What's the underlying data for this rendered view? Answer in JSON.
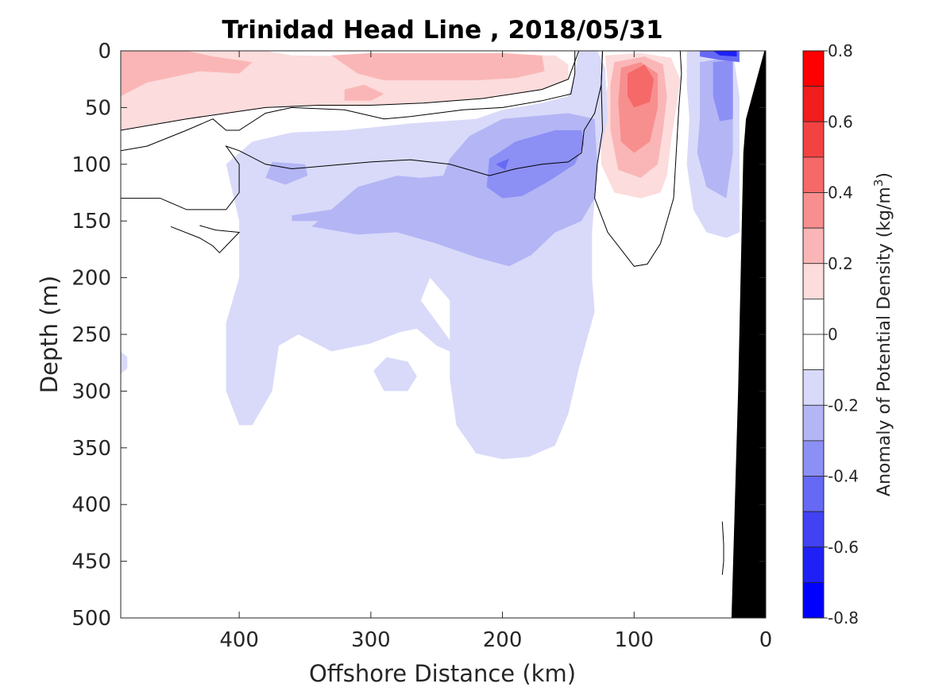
{
  "chart_data": {
    "type": "heatmap",
    "title": "Trinidad Head Line , 2018/05/31",
    "xlabel": "Offshore Distance (km)",
    "ylabel": "Depth (m)",
    "xlim": [
      490,
      0
    ],
    "ylim": [
      0,
      500
    ],
    "x_ticks": [
      "400",
      "300",
      "200",
      "100",
      "0"
    ],
    "y_ticks": [
      "0",
      "50",
      "100",
      "150",
      "200",
      "250",
      "300",
      "350",
      "400",
      "450",
      "500"
    ],
    "colorbar": {
      "label_main": "Anomaly of Potential Density (kg/m",
      "label_sup": "3",
      "label_end": ")",
      "range": [
        -0.8,
        0.8
      ],
      "step": 0.1,
      "tick_labels": [
        "0.8",
        "0.6",
        "0.4",
        "0.2",
        "0",
        "-0.2",
        "-0.4",
        "-0.6",
        "-0.8"
      ],
      "colors": {
        "neg_0.1": "#d9daf9",
        "neg_0.2": "#b3b5f5",
        "neg_0.3": "#8c8ff4",
        "neg_0.4": "#6669f4",
        "neg_0.5": "#4042f4",
        "neg_0.6": "#1f20f6",
        "neg_0.7": "#0000ff",
        "zero": "#ffffff",
        "pos_0.1": "#fcdcdc",
        "pos_0.2": "#fab6b6",
        "pos_0.3": "#f88f8f",
        "pos_0.4": "#f56969",
        "pos_0.5": "#f34242",
        "pos_0.6": "#f21d1d",
        "pos_0.7": "#ff0000"
      }
    },
    "regions": [
      {
        "level": 0.1,
        "points": [
          [
            490,
            0
          ],
          [
            380,
            0
          ],
          [
            360,
            4
          ],
          [
            300,
            5
          ],
          [
            210,
            4
          ],
          [
            160,
            4
          ],
          [
            150,
            12
          ],
          [
            150,
            25
          ],
          [
            170,
            34
          ],
          [
            215,
            42
          ],
          [
            260,
            46
          ],
          [
            300,
            48
          ],
          [
            340,
            48
          ],
          [
            380,
            50
          ],
          [
            440,
            60
          ],
          [
            490,
            70
          ]
        ]
      },
      {
        "level": 0.2,
        "points": [
          [
            490,
            0
          ],
          [
            440,
            0
          ],
          [
            420,
            5
          ],
          [
            390,
            10
          ],
          [
            400,
            20
          ],
          [
            430,
            18
          ],
          [
            470,
            28
          ],
          [
            490,
            40
          ]
        ]
      },
      {
        "level": 0.2,
        "points": [
          [
            330,
            4
          ],
          [
            300,
            2
          ],
          [
            250,
            2
          ],
          [
            200,
            2
          ],
          [
            170,
            4
          ],
          [
            168,
            18
          ],
          [
            190,
            24
          ],
          [
            220,
            26
          ],
          [
            260,
            26
          ],
          [
            290,
            26
          ],
          [
            310,
            20
          ],
          [
            320,
            12
          ]
        ]
      },
      {
        "level": 0.2,
        "points": [
          [
            305,
            30
          ],
          [
            320,
            34
          ],
          [
            320,
            44
          ],
          [
            300,
            44
          ],
          [
            290,
            38
          ]
        ]
      },
      {
        "level": 0.1,
        "points": [
          [
            122,
            4
          ],
          [
            95,
            2
          ],
          [
            72,
            6
          ],
          [
            65,
            25
          ],
          [
            68,
            50
          ],
          [
            72,
            80
          ],
          [
            75,
            110
          ],
          [
            80,
            125
          ],
          [
            95,
            130
          ],
          [
            115,
            125
          ],
          [
            125,
            100
          ],
          [
            125,
            60
          ],
          [
            120,
            30
          ]
        ]
      },
      {
        "level": 0.2,
        "points": [
          [
            115,
            10
          ],
          [
            92,
            5
          ],
          [
            78,
            12
          ],
          [
            75,
            40
          ],
          [
            78,
            70
          ],
          [
            82,
            100
          ],
          [
            95,
            112
          ],
          [
            112,
            105
          ],
          [
            118,
            70
          ],
          [
            118,
            30
          ]
        ]
      },
      {
        "level": 0.3,
        "points": [
          [
            110,
            15
          ],
          [
            95,
            10
          ],
          [
            82,
            20
          ],
          [
            82,
            50
          ],
          [
            88,
            80
          ],
          [
            100,
            90
          ],
          [
            110,
            80
          ],
          [
            112,
            45
          ]
        ]
      },
      {
        "level": 0.4,
        "points": [
          [
            105,
            20
          ],
          [
            92,
            12
          ],
          [
            85,
            25
          ],
          [
            88,
            45
          ],
          [
            100,
            50
          ],
          [
            105,
            40
          ]
        ]
      },
      {
        "level": -0.1,
        "points": [
          [
            142,
            0
          ],
          [
            128,
            0
          ],
          [
            122,
            15
          ],
          [
            120,
            60
          ],
          [
            128,
            100
          ],
          [
            132,
            160
          ],
          [
            132,
            200
          ],
          [
            130,
            230
          ],
          [
            142,
            280
          ],
          [
            150,
            320
          ],
          [
            160,
            348
          ],
          [
            180,
            358
          ],
          [
            200,
            360
          ],
          [
            220,
            355
          ],
          [
            235,
            330
          ],
          [
            240,
            290
          ],
          [
            240,
            220
          ],
          [
            255,
            200
          ],
          [
            262,
            220
          ],
          [
            240,
            255
          ],
          [
            240,
            265
          ],
          [
            250,
            260
          ],
          [
            265,
            245
          ],
          [
            278,
            248
          ],
          [
            300,
            258
          ],
          [
            330,
            265
          ],
          [
            355,
            250
          ],
          [
            370,
            260
          ],
          [
            375,
            300
          ],
          [
            390,
            330
          ],
          [
            400,
            330
          ],
          [
            410,
            300
          ],
          [
            410,
            240
          ],
          [
            400,
            200
          ],
          [
            400,
            150
          ],
          [
            410,
            100
          ],
          [
            390,
            80
          ],
          [
            360,
            72
          ],
          [
            320,
            70
          ],
          [
            270,
            64
          ],
          [
            220,
            60
          ],
          [
            200,
            52
          ],
          [
            170,
            46
          ],
          [
            150,
            40
          ],
          [
            145,
            20
          ]
        ]
      },
      {
        "level": -0.1,
        "points": [
          [
            272,
            274
          ],
          [
            288,
            270
          ],
          [
            298,
            282
          ],
          [
            290,
            300
          ],
          [
            272,
            300
          ],
          [
            265,
            287
          ]
        ]
      },
      {
        "level": -0.1,
        "points": [
          [
            60,
            0
          ],
          [
            25,
            0
          ],
          [
            20,
            40
          ],
          [
            20,
            160
          ],
          [
            30,
            165
          ],
          [
            45,
            160
          ],
          [
            55,
            140
          ],
          [
            60,
            100
          ],
          [
            58,
            60
          ],
          [
            60,
            30
          ]
        ]
      },
      {
        "level": -0.1,
        "points": [
          [
            490,
            265
          ],
          [
            485,
            270
          ],
          [
            485,
            280
          ],
          [
            490,
            285
          ]
        ]
      },
      {
        "level": -0.2,
        "points": [
          [
            130,
            60
          ],
          [
            150,
            55
          ],
          [
            200,
            60
          ],
          [
            225,
            75
          ],
          [
            240,
            95
          ],
          [
            245,
            110
          ],
          [
            262,
            112
          ],
          [
            280,
            110
          ],
          [
            310,
            120
          ],
          [
            330,
            140
          ],
          [
            340,
            150
          ],
          [
            345,
            155
          ],
          [
            310,
            162
          ],
          [
            280,
            160
          ],
          [
            250,
            170
          ],
          [
            220,
            182
          ],
          [
            195,
            190
          ],
          [
            178,
            180
          ],
          [
            160,
            160
          ],
          [
            140,
            150
          ],
          [
            130,
            130
          ],
          [
            128,
            100
          ]
        ]
      },
      {
        "level": -0.2,
        "points": [
          [
            330,
            140
          ],
          [
            360,
            145
          ],
          [
            360,
            150
          ],
          [
            330,
            150
          ]
        ]
      },
      {
        "level": -0.2,
        "points": [
          [
            350,
            100
          ],
          [
            375,
            98
          ],
          [
            380,
            112
          ],
          [
            365,
            118
          ],
          [
            348,
            110
          ]
        ]
      },
      {
        "level": -0.2,
        "points": [
          [
            50,
            10
          ],
          [
            25,
            5
          ],
          [
            25,
            90
          ],
          [
            30,
            130
          ],
          [
            45,
            120
          ],
          [
            52,
            90
          ],
          [
            50,
            60
          ]
        ]
      },
      {
        "level": -0.3,
        "points": [
          [
            140,
            70
          ],
          [
            160,
            70
          ],
          [
            190,
            80
          ],
          [
            210,
            95
          ],
          [
            212,
            120
          ],
          [
            200,
            130
          ],
          [
            185,
            128
          ],
          [
            165,
            115
          ],
          [
            145,
            100
          ],
          [
            138,
            82
          ]
        ]
      },
      {
        "level": -0.3,
        "points": [
          [
            40,
            10
          ],
          [
            25,
            8
          ],
          [
            25,
            60
          ],
          [
            35,
            62
          ],
          [
            40,
            40
          ]
        ]
      },
      {
        "level": -0.4,
        "points": [
          [
            195,
            95
          ],
          [
            205,
            100
          ],
          [
            198,
            105
          ]
        ]
      },
      {
        "level": -0.4,
        "points": [
          [
            50,
            0
          ],
          [
            20,
            0
          ],
          [
            20,
            10
          ],
          [
            35,
            8
          ],
          [
            50,
            5
          ]
        ]
      },
      {
        "level": -0.6,
        "points": [
          [
            40,
            0
          ],
          [
            22,
            0
          ],
          [
            22,
            5
          ],
          [
            35,
            4
          ]
        ]
      }
    ],
    "contours": [
      [
        [
          142,
          0
        ],
        [
          150,
          25
        ],
        [
          170,
          34
        ],
        [
          215,
          42
        ],
        [
          260,
          46
        ],
        [
          300,
          48
        ],
        [
          340,
          48
        ],
        [
          380,
          50
        ],
        [
          440,
          60
        ],
        [
          490,
          70
        ]
      ],
      [
        [
          490,
          88
        ],
        [
          470,
          84
        ],
        [
          440,
          70
        ],
        [
          420,
          60
        ],
        [
          410,
          70
        ],
        [
          400,
          70
        ],
        [
          380,
          55
        ],
        [
          360,
          50
        ],
        [
          320,
          52
        ],
        [
          290,
          60
        ],
        [
          270,
          58
        ],
        [
          230,
          52
        ],
        [
          200,
          50
        ],
        [
          170,
          44
        ],
        [
          148,
          38
        ],
        [
          145,
          20
        ],
        [
          145,
          0
        ]
      ],
      [
        [
          490,
          130
        ],
        [
          460,
          130
        ],
        [
          440,
          140
        ],
        [
          410,
          140
        ],
        [
          400,
          125
        ],
        [
          400,
          100
        ],
        [
          410,
          84
        ],
        [
          400,
          88
        ],
        [
          380,
          100
        ],
        [
          360,
          104
        ],
        [
          320,
          100
        ],
        [
          300,
          98
        ],
        [
          270,
          96
        ],
        [
          240,
          100
        ],
        [
          210,
          110
        ],
        [
          190,
          104
        ],
        [
          170,
          100
        ],
        [
          150,
          98
        ],
        [
          140,
          90
        ],
        [
          138,
          70
        ],
        [
          130,
          55
        ],
        [
          125,
          30
        ],
        [
          124,
          0
        ]
      ],
      [
        [
          452,
          155
        ],
        [
          430,
          165
        ],
        [
          420,
          172
        ],
        [
          415,
          178
        ],
        [
          410,
          172
        ],
        [
          400,
          160
        ],
        [
          418,
          158
        ],
        [
          430,
          154
        ]
      ],
      [
        [
          124,
          0
        ],
        [
          125,
          30
        ],
        [
          124,
          70
        ],
        [
          128,
          100
        ],
        [
          130,
          130
        ],
        [
          120,
          160
        ],
        [
          100,
          190
        ],
        [
          90,
          188
        ],
        [
          80,
          170
        ],
        [
          70,
          130
        ],
        [
          68,
          90
        ],
        [
          66,
          50
        ],
        [
          64,
          20
        ],
        [
          65,
          0
        ]
      ],
      [
        [
          33,
          415
        ],
        [
          32,
          435
        ],
        [
          32,
          450
        ],
        [
          33,
          462
        ]
      ]
    ],
    "bathymetry": [
      [
        1,
        0
      ],
      [
        15,
        60
      ],
      [
        17,
        90
      ],
      [
        21,
        300
      ],
      [
        26,
        500
      ],
      [
        0,
        500
      ],
      [
        0,
        0
      ]
    ]
  }
}
